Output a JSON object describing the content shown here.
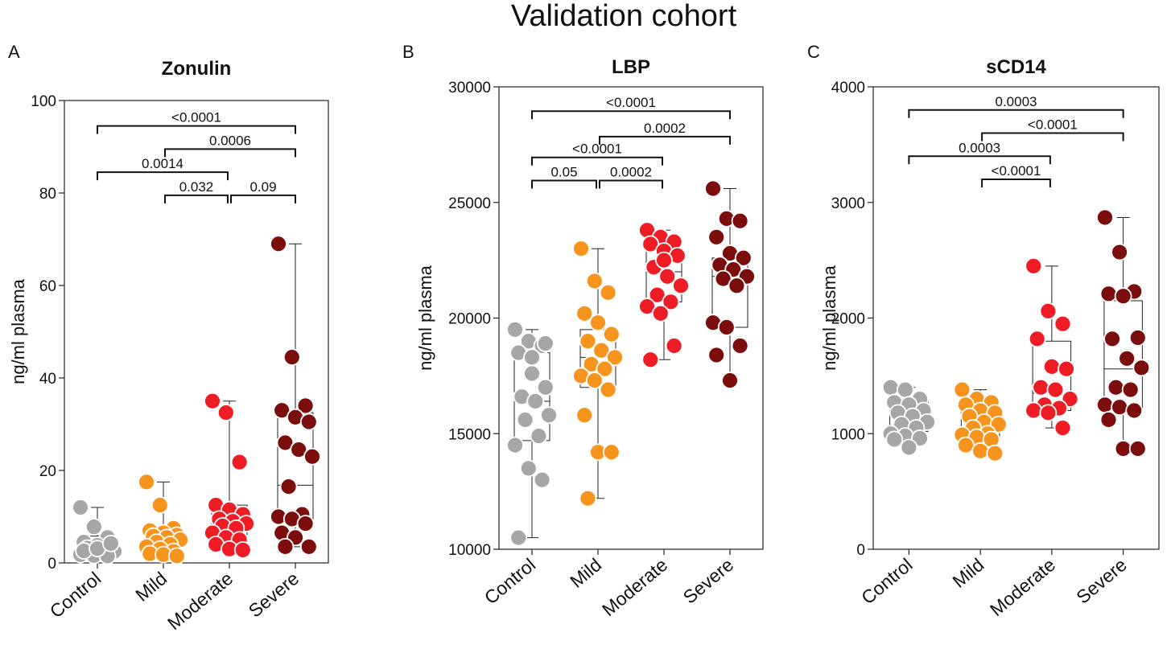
{
  "figure_title": "Validation cohort",
  "colors": {
    "Control": "#a6a6a6",
    "Mild": "#f7941d",
    "Moderate": "#ee1c24",
    "Severe": "#7b0d0d"
  },
  "chart_data": [
    {
      "type": "box-scatter",
      "panel": "A",
      "title": "Zonulin",
      "ylabel": "ng/ml plasma",
      "ylim": [
        0,
        100
      ],
      "yticks": [
        0,
        20,
        40,
        60,
        80,
        100
      ],
      "yticklabels": [
        "0",
        "20",
        "40",
        "60",
        "80",
        "100"
      ],
      "categories": [
        "Control",
        "Mild",
        "Moderate",
        "Severe"
      ],
      "boxes": [
        {
          "min": 1.5,
          "q1": 2.5,
          "median": 3.5,
          "q3": 5.8,
          "max": 12
        },
        {
          "min": 1.5,
          "q1": 3.5,
          "median": 5.8,
          "q3": 7.5,
          "max": 17.5
        },
        {
          "min": 2.8,
          "q1": 6.2,
          "median": 8.3,
          "q3": 12.5,
          "max": 35
        },
        {
          "min": 3.5,
          "q1": 9,
          "median": 16.8,
          "q3": 32.5,
          "max": 69
        }
      ],
      "points": [
        [
          12,
          7.8,
          5.5,
          4.5,
          3.8,
          3.5,
          3.2,
          2.8,
          2.5,
          2.2,
          2,
          1.8,
          1.6,
          1.5,
          2.6,
          3.1,
          4.2
        ],
        [
          17.5,
          12.5,
          7.5,
          7,
          6.5,
          6,
          5.8,
          5.5,
          5,
          4.5,
          4,
          3.5,
          3,
          2.5,
          2,
          1.8,
          1.5
        ],
        [
          35,
          32.5,
          21.8,
          12.5,
          11.5,
          10.5,
          9.5,
          9,
          8.5,
          8,
          7.5,
          6.5,
          5.5,
          5,
          4,
          3,
          2.8
        ],
        [
          69,
          44.5,
          34,
          33,
          31.5,
          30.5,
          26,
          24.5,
          23,
          16.5,
          10.5,
          10,
          9.5,
          8.5,
          6.5,
          5.5,
          3.5,
          3.5
        ]
      ],
      "comparisons": [
        {
          "from": 0,
          "to": 3,
          "label": "<0.0001"
        },
        {
          "from": 1,
          "to": 3,
          "label": "0.0006"
        },
        {
          "from": 0,
          "to": 2,
          "label": "0.0014"
        },
        {
          "from": 1,
          "to": 2,
          "label": "0.032"
        },
        {
          "from": 2,
          "to": 3,
          "label": "0.09"
        }
      ],
      "comparison_y": [
        94.5,
        89.5,
        84.5,
        79.5,
        79.5
      ]
    },
    {
      "type": "box-scatter",
      "panel": "B",
      "title": "LBP",
      "ylabel": "ng/ml plasma",
      "ylim": [
        10000,
        30000
      ],
      "yticks": [
        10000,
        15000,
        20000,
        25000,
        30000
      ],
      "yticklabels": [
        "10000",
        "15000",
        "20000",
        "25000",
        "30000"
      ],
      "categories": [
        "Control",
        "Mild",
        "Moderate",
        "Severe"
      ],
      "boxes": [
        {
          "min": 10500,
          "q1": 14700,
          "median": 16400,
          "q3": 18500,
          "max": 19500
        },
        {
          "min": 12200,
          "q1": 17000,
          "median": 18300,
          "q3": 19500,
          "max": 23000
        },
        {
          "min": 18200,
          "q1": 20700,
          "median": 22000,
          "q3": 23000,
          "max": 23800
        },
        {
          "min": 17300,
          "q1": 19600,
          "median": 21800,
          "q3": 22600,
          "max": 25600
        }
      ],
      "points": [
        [
          19500,
          19000,
          18800,
          18500,
          17600,
          17000,
          16600,
          16400,
          15800,
          15600,
          14900,
          14500,
          13500,
          13000,
          10500,
          18300,
          18900
        ],
        [
          23000,
          21600,
          21100,
          20200,
          19800,
          19300,
          19000,
          18600,
          18300,
          18000,
          17800,
          17500,
          17300,
          16900,
          15800,
          14200,
          14200,
          12200
        ],
        [
          23800,
          23500,
          23300,
          23200,
          22900,
          22700,
          22200,
          21800,
          21400,
          21000,
          20700,
          20500,
          20200,
          18800,
          18200,
          22500
        ],
        [
          25600,
          24300,
          24200,
          23500,
          22800,
          22600,
          22300,
          22100,
          21800,
          21700,
          21400,
          19800,
          19600,
          18800,
          18400,
          17300
        ]
      ],
      "comparisons": [
        {
          "from": 0,
          "to": 3,
          "label": "<0.0001"
        },
        {
          "from": 1,
          "to": 3,
          "label": "0.0002"
        },
        {
          "from": 0,
          "to": 2,
          "label": "<0.0001"
        },
        {
          "from": 0,
          "to": 1,
          "label": "0.05"
        },
        {
          "from": 1,
          "to": 2,
          "label": "0.0002"
        }
      ],
      "comparison_y": [
        28950,
        27850,
        26950,
        25950,
        25950
      ]
    },
    {
      "type": "box-scatter",
      "panel": "C",
      "title": "sCD14",
      "ylabel": "ng/ml plasma",
      "ylim": [
        0,
        4000
      ],
      "yticks": [
        0,
        1000,
        2000,
        3000,
        4000
      ],
      "yticklabels": [
        "0",
        "1000",
        "2000",
        "3000",
        "4000"
      ],
      "categories": [
        "Control",
        "Mild",
        "Moderate",
        "Severe"
      ],
      "boxes": [
        {
          "min": 880,
          "q1": 1020,
          "median": 1150,
          "q3": 1280,
          "max": 1400
        },
        {
          "min": 830,
          "q1": 950,
          "median": 1050,
          "q3": 1200,
          "max": 1380
        },
        {
          "min": 1050,
          "q1": 1200,
          "median": 1350,
          "q3": 1800,
          "max": 2450
        },
        {
          "min": 870,
          "q1": 1200,
          "median": 1560,
          "q3": 2150,
          "max": 2870
        }
      ],
      "points": [
        [
          1400,
          1380,
          1300,
          1270,
          1250,
          1200,
          1180,
          1150,
          1100,
          1080,
          1050,
          1000,
          980,
          960,
          950,
          880
        ],
        [
          1380,
          1300,
          1270,
          1250,
          1200,
          1180,
          1150,
          1100,
          1080,
          1050,
          1000,
          990,
          970,
          950,
          900,
          850,
          830
        ],
        [
          2450,
          2060,
          1950,
          1820,
          1580,
          1560,
          1400,
          1380,
          1300,
          1250,
          1220,
          1200,
          1180,
          1050
        ],
        [
          2870,
          2570,
          2230,
          2210,
          2190,
          1830,
          1820,
          1650,
          1570,
          1400,
          1380,
          1250,
          1230,
          1200,
          1120,
          870,
          870
        ]
      ],
      "comparisons": [
        {
          "from": 0,
          "to": 3,
          "label": "0.0003"
        },
        {
          "from": 1,
          "to": 3,
          "label": "<0.0001"
        },
        {
          "from": 0,
          "to": 2,
          "label": "0.0003"
        },
        {
          "from": 1,
          "to": 2,
          "label": "<0.0001"
        }
      ],
      "comparison_y": [
        3800,
        3600,
        3400,
        3200
      ]
    }
  ]
}
